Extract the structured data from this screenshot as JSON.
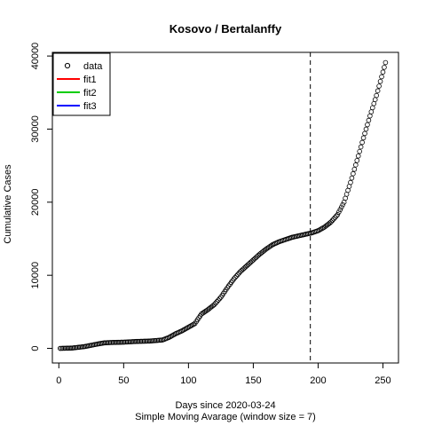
{
  "chart_data": {
    "type": "scatter",
    "title": "Kosovo / Bertalanffy",
    "xlabel": "Days since 2020-03-24",
    "subtitle": "Simple Moving Avarage (window size = 7)",
    "ylabel": "Cumulative Cases",
    "xlim": [
      -5,
      262
    ],
    "ylim": [
      -2000,
      40500
    ],
    "x_ticks": [
      0,
      50,
      100,
      150,
      200,
      250
    ],
    "y_ticks": [
      0,
      10000,
      20000,
      30000,
      40000
    ],
    "x_tick_labels": [
      "0",
      "50",
      "100",
      "150",
      "200",
      "250"
    ],
    "y_tick_labels": [
      "0",
      "10000",
      "20000",
      "30000",
      "40000"
    ],
    "vline_x": 194,
    "legend": {
      "position": "top-left",
      "entries": [
        {
          "label": "data",
          "kind": "point",
          "color": "#000000"
        },
        {
          "label": "fit1",
          "kind": "line",
          "color": "#ff0000"
        },
        {
          "label": "fit2",
          "kind": "line",
          "color": "#00cd00"
        },
        {
          "label": "fit3",
          "kind": "line",
          "color": "#0000ff"
        }
      ]
    },
    "series": [
      {
        "name": "data",
        "x_start": 1,
        "x_end": 252,
        "curve_points": [
          [
            1,
            0
          ],
          [
            10,
            40
          ],
          [
            20,
            250
          ],
          [
            30,
            600
          ],
          [
            35,
            750
          ],
          [
            40,
            800
          ],
          [
            50,
            850
          ],
          [
            60,
            950
          ],
          [
            70,
            1000
          ],
          [
            80,
            1150
          ],
          [
            85,
            1500
          ],
          [
            90,
            2000
          ],
          [
            95,
            2400
          ],
          [
            100,
            2900
          ],
          [
            105,
            3400
          ],
          [
            110,
            4700
          ],
          [
            115,
            5300
          ],
          [
            120,
            6000
          ],
          [
            125,
            7000
          ],
          [
            130,
            8300
          ],
          [
            135,
            9500
          ],
          [
            140,
            10500
          ],
          [
            145,
            11300
          ],
          [
            150,
            12100
          ],
          [
            155,
            12900
          ],
          [
            160,
            13600
          ],
          [
            165,
            14200
          ],
          [
            170,
            14600
          ],
          [
            175,
            14900
          ],
          [
            180,
            15200
          ],
          [
            185,
            15400
          ],
          [
            190,
            15600
          ],
          [
            195,
            15800
          ],
          [
            200,
            16100
          ],
          [
            205,
            16600
          ],
          [
            210,
            17300
          ],
          [
            215,
            18300
          ],
          [
            220,
            20000
          ],
          [
            225,
            22700
          ],
          [
            230,
            25700
          ],
          [
            235,
            28800
          ],
          [
            240,
            31800
          ],
          [
            245,
            34600
          ],
          [
            250,
            37800
          ],
          [
            252,
            39100
          ]
        ]
      }
    ]
  }
}
